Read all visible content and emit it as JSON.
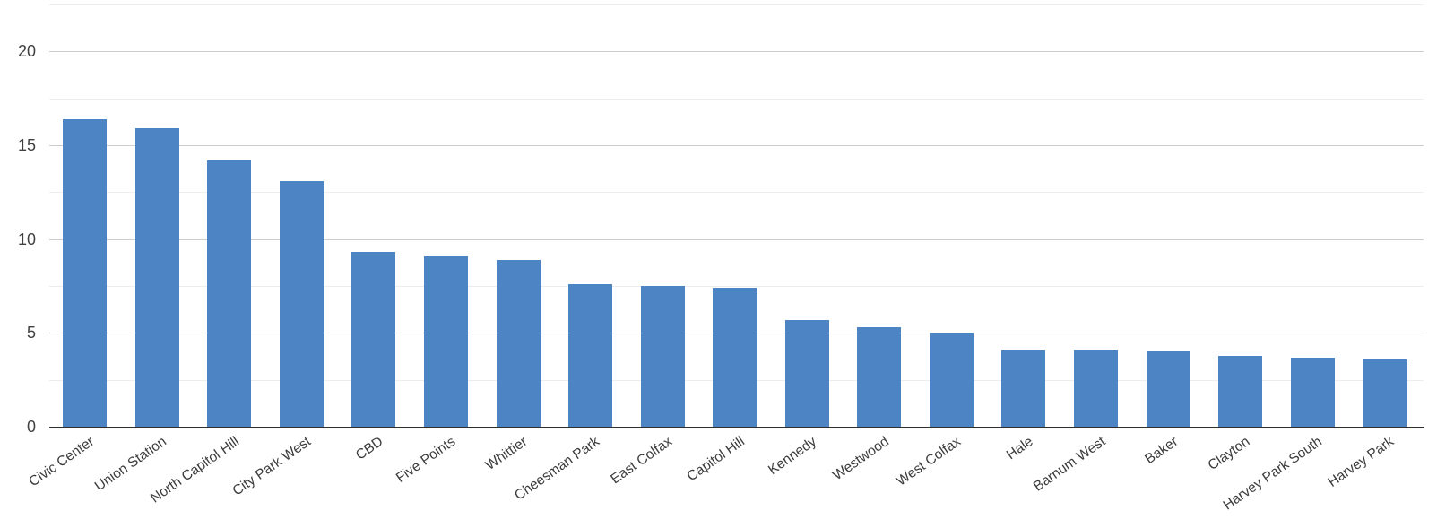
{
  "chart_data": {
    "type": "bar",
    "title": "",
    "xlabel": "",
    "ylabel": "",
    "categories": [
      "Civic Center",
      "Union Station",
      "North Capitol Hill",
      "City Park West",
      "CBD",
      "Five Points",
      "Whittier",
      "Cheesman Park",
      "East Colfax",
      "Capitol Hill",
      "Kennedy",
      "Westwood",
      "West Colfax",
      "Hale",
      "Barnum West",
      "Baker",
      "Clayton",
      "Harvey Park South",
      "Harvey Park"
    ],
    "values": [
      16.4,
      15.9,
      14.2,
      13.1,
      9.3,
      9.1,
      8.9,
      7.6,
      7.5,
      7.4,
      5.7,
      5.3,
      5.0,
      4.1,
      4.1,
      4.0,
      3.8,
      3.7,
      3.6
    ],
    "ylim": [
      0,
      22.5
    ],
    "yticks": [
      0,
      5,
      10,
      15,
      20
    ],
    "minor_gridlines": [
      2.5,
      7.5,
      12.5,
      17.5,
      22.5
    ],
    "grid": true,
    "legend": false,
    "x_label_rotation_deg": -35,
    "colors": {
      "bar": "#4c84c4",
      "axis_line": "#303030",
      "major_grid": "#cccccc",
      "minor_grid": "#ededed",
      "y_tick_text": "#404040",
      "x_tick_text": "#3c3c3c",
      "background": "#ffffff"
    }
  }
}
